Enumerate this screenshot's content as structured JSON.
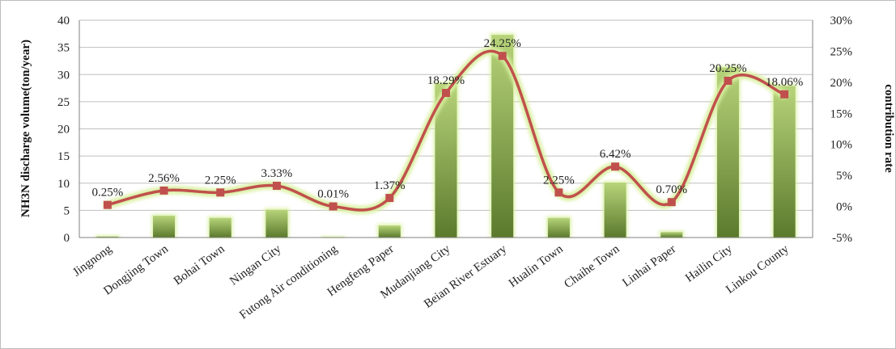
{
  "chart_data": {
    "type": "bar-line combo",
    "categories": [
      "Jingnong",
      "Dongjing Town",
      "Bohai Town",
      "Ningan City",
      "Futong Air conditioning",
      "Hengfeng Paper",
      "Mudanjiang City",
      "Beian River Estuary",
      "Hualin Town",
      "Chaihe Town",
      "Linhai  Paper",
      "Hailin City",
      "Linkou County"
    ],
    "series": [
      {
        "type": "bar",
        "axis": "left",
        "values": [
          0.2,
          4.0,
          3.6,
          5.1,
          0.1,
          2.2,
          28.3,
          37.3,
          3.6,
          10.1,
          1.0,
          31.3,
          27.9
        ]
      },
      {
        "type": "line",
        "axis": "right",
        "values": [
          0.25,
          2.56,
          2.25,
          3.33,
          0.01,
          1.37,
          18.29,
          24.25,
          2.25,
          6.42,
          0.7,
          20.25,
          18.06
        ]
      }
    ],
    "data_labels": [
      "0.25%",
      "2.56%",
      "2.25%",
      "3.33%",
      "0.01%",
      "1.37%",
      "18.29%",
      "24.25%",
      "2.25%",
      "6.42%",
      "0.70%",
      "20.25%",
      "18.06%"
    ],
    "ylabel": "NH3N discharge volume(ton/year)",
    "y2label": "contribution rate",
    "ylim": [
      0,
      40
    ],
    "yticks": [
      "0",
      "5",
      "10",
      "15",
      "20",
      "25",
      "30",
      "35",
      "40"
    ],
    "y2lim": [
      -5,
      30
    ],
    "y2ticks": [
      "-5%",
      "0%",
      "5%",
      "10%",
      "15%",
      "20%",
      "25%",
      "30%"
    ],
    "grid": true,
    "colors": {
      "bar_dark": "#5b7a2c",
      "bar_light": "#b7d47a",
      "glow": "#d9f0a0",
      "line": "#c0504d",
      "grid": "#bfbfbf",
      "axis": "#808080"
    }
  }
}
